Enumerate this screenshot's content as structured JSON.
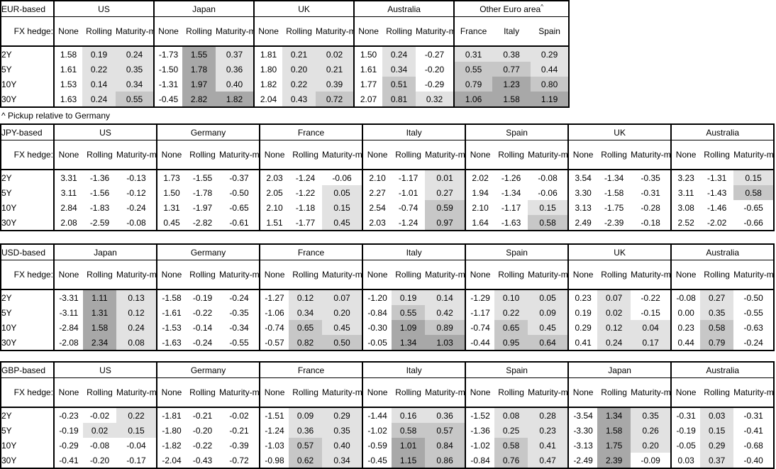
{
  "footnote": "^ Pickup relative to Germany",
  "colors": {
    "cell_light": "#e2e2e2",
    "cell_medium": "#c7c7c7",
    "cell_dark": "#a8a8a8",
    "border": "#000000",
    "background": "#ffffff"
  },
  "tables": [
    {
      "basis": "EUR-based",
      "fx_hedge_label": "FX hedge:",
      "tenors": [
        "2Y",
        "5Y",
        "10Y",
        "30Y"
      ],
      "groups": [
        {
          "country": "US",
          "cols": [
            "None",
            "Rolling",
            "Maturity-matched"
          ],
          "rows": [
            [
              "1.58",
              "0.19",
              "0.24"
            ],
            [
              "1.61",
              "0.22",
              "0.35"
            ],
            [
              "1.53",
              "0.14",
              "0.34"
            ],
            [
              "1.63",
              "0.24",
              "0.55"
            ]
          ]
        },
        {
          "country": "Japan",
          "cols": [
            "None",
            "Rolling",
            "Maturity-matched"
          ],
          "rows": [
            [
              "-1.73",
              "1.55",
              "0.37"
            ],
            [
              "-1.50",
              "1.78",
              "0.36"
            ],
            [
              "-1.31",
              "1.97",
              "0.40"
            ],
            [
              "-0.45",
              "2.82",
              "1.82"
            ]
          ]
        },
        {
          "country": "UK",
          "cols": [
            "None",
            "Rolling",
            "Maturity-matched"
          ],
          "rows": [
            [
              "1.81",
              "0.21",
              "0.02"
            ],
            [
              "1.80",
              "0.20",
              "0.21"
            ],
            [
              "1.82",
              "0.22",
              "0.39"
            ],
            [
              "2.04",
              "0.43",
              "0.72"
            ]
          ]
        },
        {
          "country": "Australia",
          "cols": [
            "None",
            "Rolling",
            "Maturity-matched"
          ],
          "rows": [
            [
              "1.50",
              "0.24",
              "-0.27"
            ],
            [
              "1.61",
              "0.34",
              "-0.20"
            ],
            [
              "1.77",
              "0.51",
              "-0.29"
            ],
            [
              "2.07",
              "0.81",
              "0.32"
            ]
          ]
        },
        {
          "country": "Other Euro area",
          "sup": "^",
          "cols": [
            "France",
            "Italy",
            "Spain"
          ],
          "rows": [
            [
              "0.31",
              "0.38",
              "0.29"
            ],
            [
              "0.55",
              "0.77",
              "0.44"
            ],
            [
              "0.79",
              "1.23",
              "0.80"
            ],
            [
              "1.06",
              "1.58",
              "1.19"
            ]
          ]
        }
      ]
    },
    {
      "basis": "JPY-based",
      "fx_hedge_label": "FX hedge:",
      "tenors": [
        "2Y",
        "5Y",
        "10Y",
        "30Y"
      ],
      "groups": [
        {
          "country": "US",
          "cols": [
            "None",
            "Rolling",
            "Maturity-matched"
          ],
          "rows": [
            [
              "3.31",
              "-1.36",
              "-0.13"
            ],
            [
              "3.11",
              "-1.56",
              "-0.12"
            ],
            [
              "2.84",
              "-1.83",
              "-0.24"
            ],
            [
              "2.08",
              "-2.59",
              "-0.08"
            ]
          ]
        },
        {
          "country": "Germany",
          "cols": [
            "None",
            "Rolling",
            "Maturity-matched"
          ],
          "rows": [
            [
              "1.73",
              "-1.55",
              "-0.37"
            ],
            [
              "1.50",
              "-1.78",
              "-0.50"
            ],
            [
              "1.31",
              "-1.97",
              "-0.65"
            ],
            [
              "0.45",
              "-2.82",
              "-0.61"
            ]
          ]
        },
        {
          "country": "France",
          "cols": [
            "None",
            "Rolling",
            "Maturity-matched"
          ],
          "rows": [
            [
              "2.03",
              "-1.24",
              "-0.06"
            ],
            [
              "2.05",
              "-1.22",
              "0.05"
            ],
            [
              "2.10",
              "-1.18",
              "0.15"
            ],
            [
              "1.51",
              "-1.77",
              "0.45"
            ]
          ]
        },
        {
          "country": "Italy",
          "cols": [
            "None",
            "Rolling",
            "Maturity-matched"
          ],
          "rows": [
            [
              "2.10",
              "-1.17",
              "0.01"
            ],
            [
              "2.27",
              "-1.01",
              "0.27"
            ],
            [
              "2.54",
              "-0.74",
              "0.59"
            ],
            [
              "2.03",
              "-1.24",
              "0.97"
            ]
          ]
        },
        {
          "country": "Spain",
          "cols": [
            "None",
            "Rolling",
            "Maturity-matched"
          ],
          "rows": [
            [
              "2.02",
              "-1.26",
              "-0.08"
            ],
            [
              "1.94",
              "-1.34",
              "-0.06"
            ],
            [
              "2.10",
              "-1.17",
              "0.15"
            ],
            [
              "1.64",
              "-1.63",
              "0.58"
            ]
          ]
        },
        {
          "country": "UK",
          "cols": [
            "None",
            "Rolling",
            "Maturity-matched"
          ],
          "rows": [
            [
              "3.54",
              "-1.34",
              "-0.35"
            ],
            [
              "3.30",
              "-1.58",
              "-0.31"
            ],
            [
              "3.13",
              "-1.75",
              "-0.28"
            ],
            [
              "2.49",
              "-2.39",
              "-0.18"
            ]
          ]
        },
        {
          "country": "Australia",
          "cols": [
            "None",
            "Rolling",
            "Maturity-matched"
          ],
          "rows": [
            [
              "3.23",
              "-1.31",
              "0.15"
            ],
            [
              "3.11",
              "-1.43",
              "0.58"
            ],
            [
              "3.08",
              "-1.46",
              "-0.65"
            ],
            [
              "2.52",
              "-2.02",
              "-0.66"
            ]
          ]
        }
      ]
    },
    {
      "basis": "USD-based",
      "fx_hedge_label": "FX hedge:",
      "tenors": [
        "2Y",
        "5Y",
        "10Y",
        "30Y"
      ],
      "groups": [
        {
          "country": "Japan",
          "cols": [
            "None",
            "Rolling",
            "Maturity-matched"
          ],
          "rows": [
            [
              "-3.31",
              "1.11",
              "0.13"
            ],
            [
              "-3.11",
              "1.31",
              "0.12"
            ],
            [
              "-2.84",
              "1.58",
              "0.24"
            ],
            [
              "-2.08",
              "2.34",
              "0.08"
            ]
          ]
        },
        {
          "country": "Germany",
          "cols": [
            "None",
            "Rolling",
            "Maturity-matched"
          ],
          "rows": [
            [
              "-1.58",
              "-0.19",
              "-0.24"
            ],
            [
              "-1.61",
              "-0.22",
              "-0.35"
            ],
            [
              "-1.53",
              "-0.14",
              "-0.34"
            ],
            [
              "-1.63",
              "-0.24",
              "-0.55"
            ]
          ]
        },
        {
          "country": "France",
          "cols": [
            "None",
            "Rolling",
            "Maturity-matched"
          ],
          "rows": [
            [
              "-1.27",
              "0.12",
              "0.07"
            ],
            [
              "-1.06",
              "0.34",
              "0.20"
            ],
            [
              "-0.74",
              "0.65",
              "0.45"
            ],
            [
              "-0.57",
              "0.82",
              "0.50"
            ]
          ]
        },
        {
          "country": "Italy",
          "cols": [
            "None",
            "Rolling",
            "Maturity-matched"
          ],
          "rows": [
            [
              "-1.20",
              "0.19",
              "0.14"
            ],
            [
              "-0.84",
              "0.55",
              "0.42"
            ],
            [
              "-0.30",
              "1.09",
              "0.89"
            ],
            [
              "-0.05",
              "1.34",
              "1.03"
            ]
          ]
        },
        {
          "country": "Spain",
          "cols": [
            "None",
            "Rolling",
            "Maturity-matched"
          ],
          "rows": [
            [
              "-1.29",
              "0.10",
              "0.05"
            ],
            [
              "-1.17",
              "0.22",
              "0.09"
            ],
            [
              "-0.74",
              "0.65",
              "0.45"
            ],
            [
              "-0.44",
              "0.95",
              "0.64"
            ]
          ]
        },
        {
          "country": "UK",
          "cols": [
            "None",
            "Rolling",
            "Maturity-matched"
          ],
          "rows": [
            [
              "0.23",
              "0.07",
              "-0.22"
            ],
            [
              "0.19",
              "0.02",
              "-0.15"
            ],
            [
              "0.29",
              "0.12",
              "0.04"
            ],
            [
              "0.41",
              "0.24",
              "0.17"
            ]
          ]
        },
        {
          "country": "Australia",
          "cols": [
            "None",
            "Rolling",
            "Maturity-matched"
          ],
          "rows": [
            [
              "-0.08",
              "0.27",
              "-0.50"
            ],
            [
              "0.00",
              "0.35",
              "-0.55"
            ],
            [
              "0.23",
              "0.58",
              "-0.63"
            ],
            [
              "0.44",
              "0.79",
              "-0.24"
            ]
          ]
        }
      ]
    },
    {
      "basis": "GBP-based",
      "fx_hedge_label": "FX hedge:",
      "tenors": [
        "2Y",
        "5Y",
        "10Y",
        "30Y"
      ],
      "groups": [
        {
          "country": "US",
          "cols": [
            "None",
            "Rolling",
            "Maturity-matched"
          ],
          "rows": [
            [
              "-0.23",
              "-0.02",
              "0.22"
            ],
            [
              "-0.19",
              "0.02",
              "0.15"
            ],
            [
              "-0.29",
              "-0.08",
              "-0.04"
            ],
            [
              "-0.41",
              "-0.20",
              "-0.17"
            ]
          ]
        },
        {
          "country": "Germany",
          "cols": [
            "None",
            "Rolling",
            "Maturity-matched"
          ],
          "rows": [
            [
              "-1.81",
              "-0.21",
              "-0.02"
            ],
            [
              "-1.80",
              "-0.20",
              "-0.21"
            ],
            [
              "-1.82",
              "-0.22",
              "-0.39"
            ],
            [
              "-2.04",
              "-0.43",
              "-0.72"
            ]
          ]
        },
        {
          "country": "France",
          "cols": [
            "None",
            "Rolling",
            "Maturity-matched"
          ],
          "rows": [
            [
              "-1.51",
              "0.09",
              "0.29"
            ],
            [
              "-1.24",
              "0.36",
              "0.35"
            ],
            [
              "-1.03",
              "0.57",
              "0.40"
            ],
            [
              "-0.98",
              "0.62",
              "0.34"
            ]
          ]
        },
        {
          "country": "Italy",
          "cols": [
            "None",
            "Rolling",
            "Maturity-matched"
          ],
          "rows": [
            [
              "-1.44",
              "0.16",
              "0.36"
            ],
            [
              "-1.02",
              "0.58",
              "0.57"
            ],
            [
              "-0.59",
              "1.01",
              "0.84"
            ],
            [
              "-0.45",
              "1.15",
              "0.86"
            ]
          ]
        },
        {
          "country": "Spain",
          "cols": [
            "None",
            "Rolling",
            "Maturity-matched"
          ],
          "rows": [
            [
              "-1.52",
              "0.08",
              "0.28"
            ],
            [
              "-1.36",
              "0.25",
              "0.23"
            ],
            [
              "-1.02",
              "0.58",
              "0.41"
            ],
            [
              "-0.84",
              "0.76",
              "0.47"
            ]
          ]
        },
        {
          "country": "Japan",
          "cols": [
            "None",
            "Rolling",
            "Maturity-matched"
          ],
          "rows": [
            [
              "-3.54",
              "1.34",
              "0.35"
            ],
            [
              "-3.30",
              "1.58",
              "0.26"
            ],
            [
              "-3.13",
              "1.75",
              "0.20"
            ],
            [
              "-2.49",
              "2.39",
              "-0.09"
            ]
          ]
        },
        {
          "country": "Australia",
          "cols": [
            "None",
            "Rolling",
            "Maturity-matched"
          ],
          "rows": [
            [
              "-0.31",
              "0.03",
              "-0.31"
            ],
            [
              "-0.19",
              "0.15",
              "-0.41"
            ],
            [
              "-0.05",
              "0.29",
              "-0.68"
            ],
            [
              "0.03",
              "0.37",
              "-0.40"
            ]
          ]
        }
      ]
    }
  ]
}
